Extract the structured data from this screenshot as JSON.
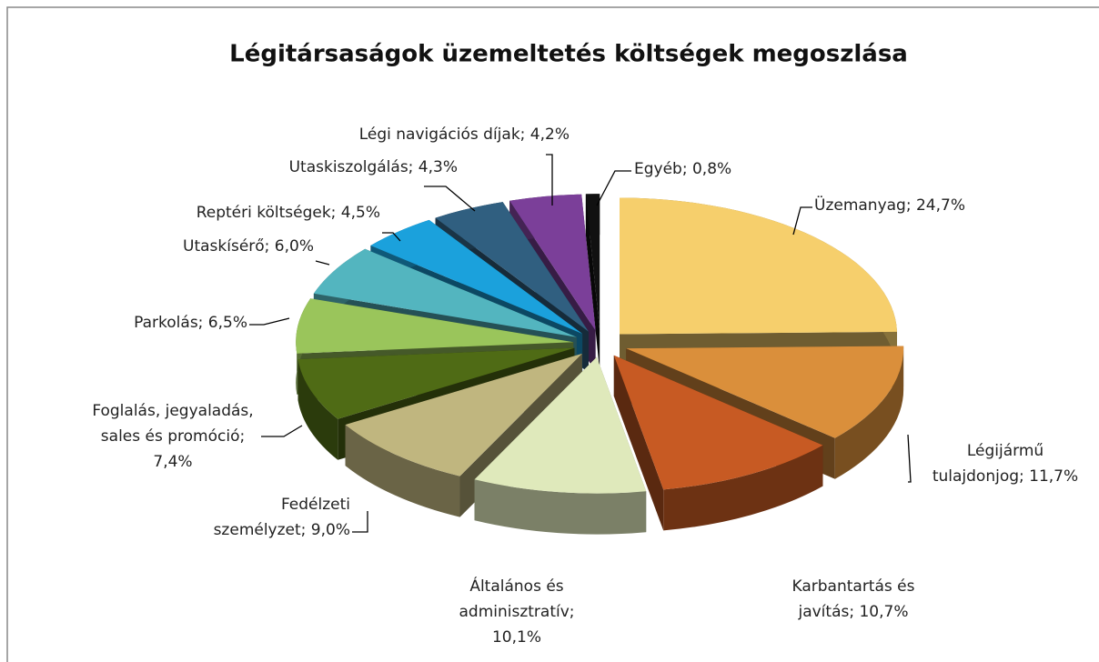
{
  "chart_data": {
    "type": "pie",
    "title": "Légitársaságok üzemeltetés költségek megoszlása",
    "values": [
      24.7,
      11.7,
      10.7,
      10.1,
      9.0,
      7.4,
      6.5,
      6.0,
      4.5,
      4.3,
      4.2,
      0.8
    ],
    "value_labels": [
      [
        "Üzemanyag; 24,7%"
      ],
      [
        "Légijármű",
        "tulajdonjog; 11,7%"
      ],
      [
        "Karbantartás és",
        "javítás; 10,7%"
      ],
      [
        "Általános és",
        "adminisztratív;",
        "10,1%"
      ],
      [
        "Fedélzeti",
        "személyzet; 9,0%"
      ],
      [
        "Foglalás, jegyaladás,",
        "sales és promóció;",
        "7,4%"
      ],
      [
        "Parkolás; 6,5%"
      ],
      [
        "Utaskísérő; 6,0%"
      ],
      [
        "Reptéri költségek; 4,5%"
      ],
      [
        "Utaskiszolgálás; 4,3%"
      ],
      [
        "Légi navigációs díjak; 4,2%"
      ],
      [
        "Egyéb; 0,8%"
      ]
    ],
    "colors": [
      "#f6cf6c",
      "#da8f3b",
      "#c75a23",
      "#dfe9bb",
      "#c0b67f",
      "#4f6b15",
      "#9ac55b",
      "#53b5bf",
      "#1ba1dc",
      "#305f80",
      "#7b3f99",
      "#111111"
    ]
  }
}
